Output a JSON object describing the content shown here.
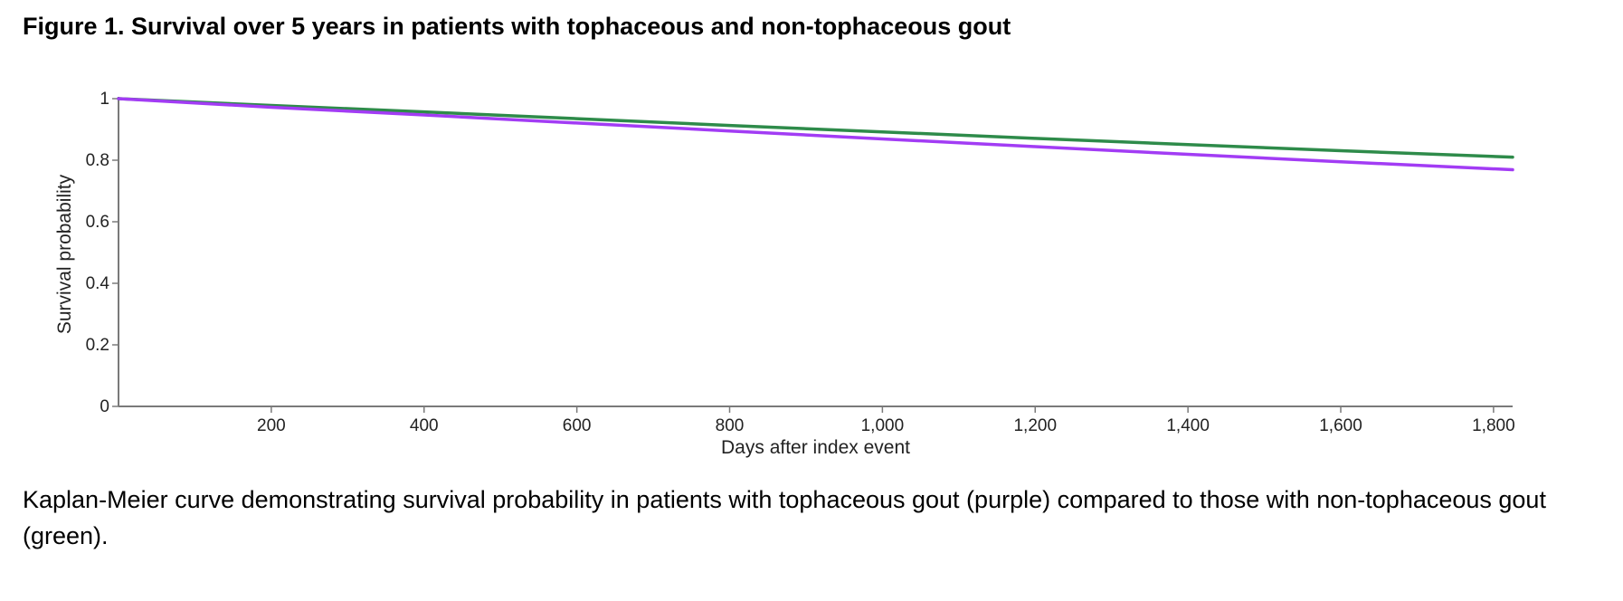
{
  "figure": {
    "title": "Figure 1. Survival over 5 years in patients with tophaceous and non-tophaceous gout",
    "caption": "Kaplan-Meier curve demonstrating survival probability in patients with tophaceous gout (purple) compared to those with non-tophaceous gout (green)."
  },
  "chart_data": {
    "type": "line",
    "title": "",
    "xlabel": "Days after index event",
    "ylabel": "Survival probability",
    "xlim": [
      0,
      1825
    ],
    "ylim": [
      0,
      1
    ],
    "x_ticks": [
      200,
      400,
      600,
      800,
      1000,
      1200,
      1400,
      1600,
      1800
    ],
    "x_tick_labels": [
      "200",
      "400",
      "600",
      "800",
      "1,000",
      "1,200",
      "1,400",
      "1,600",
      "1,800"
    ],
    "y_ticks": [
      0,
      0.2,
      0.4,
      0.6,
      0.8,
      1
    ],
    "y_tick_labels": [
      "0",
      "0.2",
      "0.4",
      "0.6",
      "0.8",
      "1"
    ],
    "grid": false,
    "series": [
      {
        "color": "#2e8b4a",
        "x": [
          0,
          200,
          400,
          600,
          800,
          1000,
          1200,
          1400,
          1600,
          1825
        ],
        "y": [
          1.0,
          0.978,
          0.957,
          0.935,
          0.913,
          0.892,
          0.871,
          0.851,
          0.831,
          0.81
        ]
      },
      {
        "color": "#a23cf4",
        "x": [
          0,
          200,
          400,
          600,
          800,
          1000,
          1200,
          1400,
          1600,
          1825
        ],
        "y": [
          1.0,
          0.972,
          0.947,
          0.921,
          0.895,
          0.869,
          0.844,
          0.819,
          0.795,
          0.769
        ]
      }
    ]
  }
}
